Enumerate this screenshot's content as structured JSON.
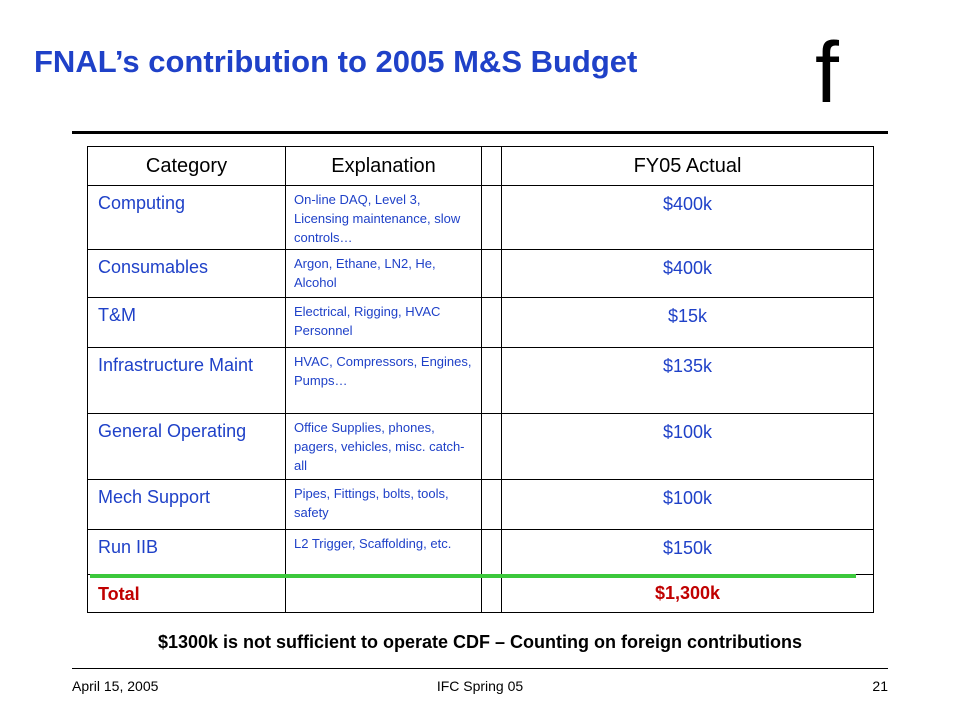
{
  "title": "FNAL’s contribution to 2005 M&S Budget",
  "logo_text": "f",
  "table": {
    "headers": [
      "Category",
      "Explanation",
      "",
      "FY05 Actual"
    ],
    "rows": [
      {
        "category": "Computing",
        "explanation": "On-line DAQ, Level 3, Licensing maintenance, slow controls…",
        "value": "$400k"
      },
      {
        "category": "Consumables",
        "explanation": "Argon, Ethane, LN2, He, Alcohol",
        "value": "$400k"
      },
      {
        "category": "T&M",
        "explanation": "Electrical, Rigging, HVAC Personnel",
        "value": "$15k"
      },
      {
        "category": "Infrastructure Maint",
        "explanation": "HVAC, Compressors, Engines, Pumps…",
        "value": "$135k"
      },
      {
        "category": "General Operating",
        "explanation": "Office Supplies, phones, pagers, vehicles, misc. catch-all",
        "value": "$100k"
      },
      {
        "category": "Mech Support",
        "explanation": "Pipes, Fittings, bolts, tools, safety",
        "value": "$100k"
      },
      {
        "category": "Run IIB",
        "explanation": "L2 Trigger, Scaffolding, etc.",
        "value": "$150k"
      }
    ],
    "total": {
      "category": "Total",
      "value": "$1,300k"
    }
  },
  "note": "$1300k is not sufficient to operate CDF – Counting on foreign contributions",
  "footer": {
    "date": "April 15, 2005",
    "event": "IFC Spring 05",
    "page": "21"
  },
  "colors": {
    "title": "#1f41c8",
    "body_text": "#1f41c8",
    "total": "#c00000",
    "divider": "#3cc83c"
  }
}
